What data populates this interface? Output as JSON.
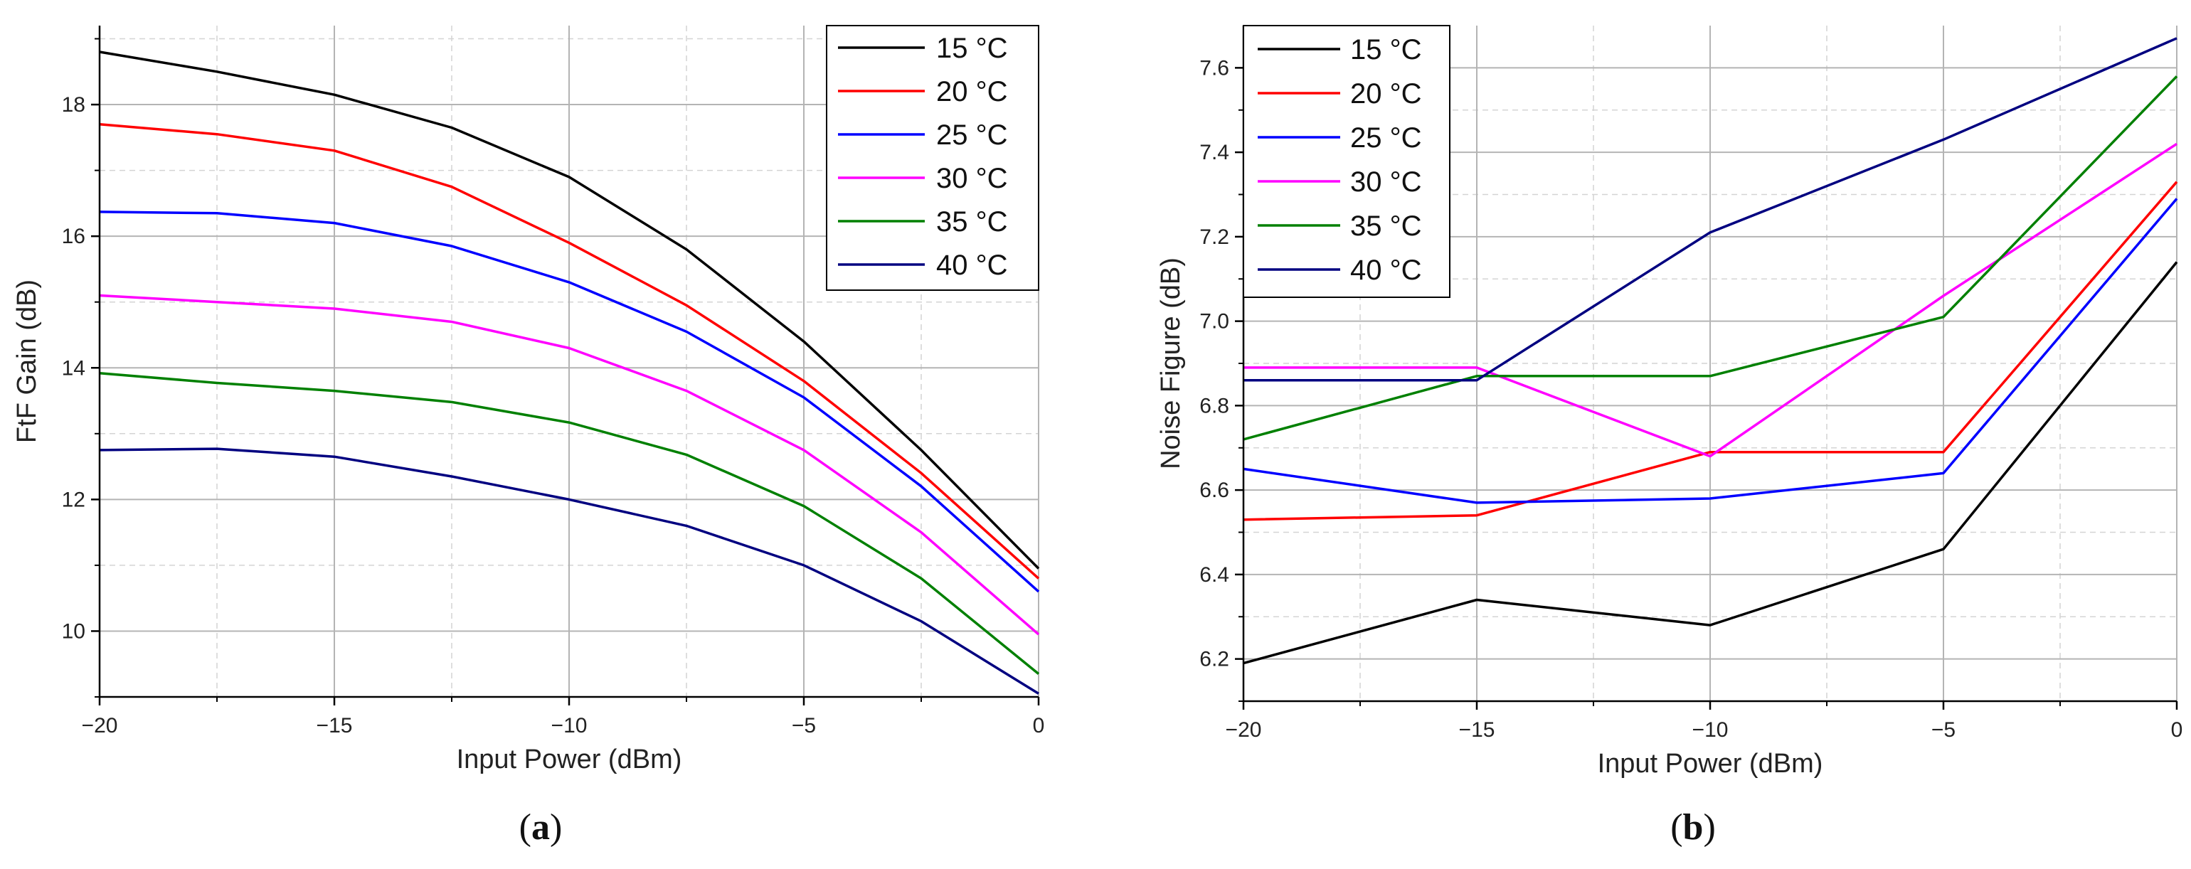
{
  "chart_data": [
    {
      "type": "line",
      "caption_letter": "a",
      "xlabel": "Input Power (dBm)",
      "ylabel": "FtF Gain (dB)",
      "xlim": [
        -20,
        0
      ],
      "ylim": [
        9,
        19.2
      ],
      "xticks": [
        -20,
        -15,
        -10,
        -5,
        0
      ],
      "xtick_labels": [
        "−20",
        "−15",
        "−10",
        "−5",
        "0"
      ],
      "yticks": [
        10,
        12,
        14,
        16,
        18
      ],
      "ytick_labels": [
        "10",
        "12",
        "14",
        "16",
        "18"
      ],
      "grid": true,
      "legend_position": "top-right",
      "x": [
        -20,
        -17.5,
        -15,
        -12.5,
        -10,
        -7.5,
        -5,
        -2.5,
        0
      ],
      "series": [
        {
          "name": "15 °C",
          "color": "#000000",
          "values": [
            18.8,
            18.5,
            18.15,
            17.65,
            16.9,
            15.8,
            14.4,
            12.75,
            10.95
          ]
        },
        {
          "name": "20 °C",
          "color": "#ff0000",
          "values": [
            17.7,
            17.55,
            17.3,
            16.75,
            15.9,
            14.95,
            13.8,
            12.4,
            10.8
          ]
        },
        {
          "name": "25 °C",
          "color": "#0000ff",
          "values": [
            16.37,
            16.35,
            16.2,
            15.85,
            15.3,
            14.55,
            13.55,
            12.2,
            10.6
          ]
        },
        {
          "name": "30 °C",
          "color": "#ff00ff",
          "values": [
            15.1,
            15.0,
            14.9,
            14.7,
            14.3,
            13.65,
            12.75,
            11.5,
            9.95
          ]
        },
        {
          "name": "35 °C",
          "color": "#008000",
          "values": [
            13.92,
            13.77,
            13.65,
            13.48,
            13.17,
            12.68,
            11.9,
            10.8,
            9.35
          ]
        },
        {
          "name": "40 °C",
          "color": "#000080",
          "values": [
            12.75,
            12.77,
            12.65,
            12.35,
            12.0,
            11.6,
            11.0,
            10.15,
            9.05
          ]
        }
      ]
    },
    {
      "type": "line",
      "caption_letter": "b",
      "xlabel": "Input Power (dBm)",
      "ylabel": "Noise Figure (dB)",
      "xlim": [
        -20,
        0
      ],
      "ylim": [
        6.1,
        7.7
      ],
      "xticks": [
        -20,
        -15,
        -10,
        -5,
        0
      ],
      "xtick_labels": [
        "−20",
        "−15",
        "−10",
        "−5",
        "0"
      ],
      "yticks": [
        6.2,
        6.4,
        6.6,
        6.8,
        7.0,
        7.2,
        7.4,
        7.6
      ],
      "ytick_labels": [
        "6.2",
        "6.4",
        "6.6",
        "6.8",
        "7.0",
        "7.2",
        "7.4",
        "7.6"
      ],
      "grid": true,
      "legend_position": "top-left",
      "x": [
        -20,
        -15,
        -10,
        -5,
        0
      ],
      "series": [
        {
          "name": "15 °C",
          "color": "#000000",
          "values": [
            6.19,
            6.34,
            6.28,
            6.46,
            7.14
          ]
        },
        {
          "name": "20 °C",
          "color": "#ff0000",
          "values": [
            6.53,
            6.54,
            6.69,
            6.69,
            7.33
          ]
        },
        {
          "name": "25 °C",
          "color": "#0000ff",
          "values": [
            6.65,
            6.57,
            6.58,
            6.64,
            7.29
          ]
        },
        {
          "name": "30 °C",
          "color": "#ff00ff",
          "values": [
            6.89,
            6.89,
            6.68,
            7.06,
            7.42
          ]
        },
        {
          "name": "35 °C",
          "color": "#008000",
          "values": [
            6.72,
            6.87,
            6.87,
            7.01,
            7.58
          ]
        },
        {
          "name": "40 °C",
          "color": "#000080",
          "values": [
            6.86,
            6.86,
            7.21,
            7.43,
            7.67
          ]
        }
      ]
    }
  ]
}
